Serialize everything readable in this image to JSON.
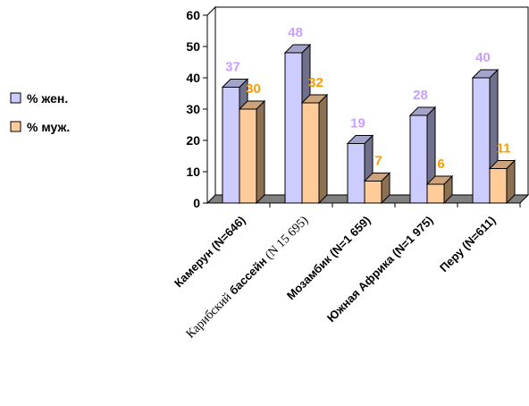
{
  "chart_data": {
    "type": "bar",
    "categories": [
      {
        "segments": [
          {
            "text": "Камерун (N=646)",
            "style": "sans"
          }
        ]
      },
      {
        "segments": [
          {
            "text": "Карибский ",
            "style": "serif"
          },
          {
            "text": "бассейн ",
            "style": "sans"
          },
          {
            "text": "(N 15 695)",
            "style": "serif"
          }
        ]
      },
      {
        "segments": [
          {
            "text": "Мозамбик (N=1 659)",
            "style": "sans"
          }
        ]
      },
      {
        "segments": [
          {
            "text": "Южная Африка (N=1 975)",
            "style": "sans"
          }
        ]
      },
      {
        "segments": [
          {
            "text": "Перу  (N=611)",
            "style": "sans"
          }
        ]
      }
    ],
    "series": [
      {
        "name": "% жен.",
        "values": [
          37,
          48,
          19,
          28,
          40
        ],
        "color": "#ccccff",
        "label_color": "#c9a0ff"
      },
      {
        "name": "% муж.",
        "values": [
          30,
          32,
          7,
          6,
          11
        ],
        "color": "#ffcc99",
        "label_color": "#ff9900"
      }
    ],
    "yticks": [
      "0",
      "10",
      "20",
      "30",
      "40",
      "50",
      "60"
    ],
    "ylim": [
      0,
      60
    ],
    "grid": true,
    "gridline_color": "#ffff00",
    "legend_position": "left"
  }
}
